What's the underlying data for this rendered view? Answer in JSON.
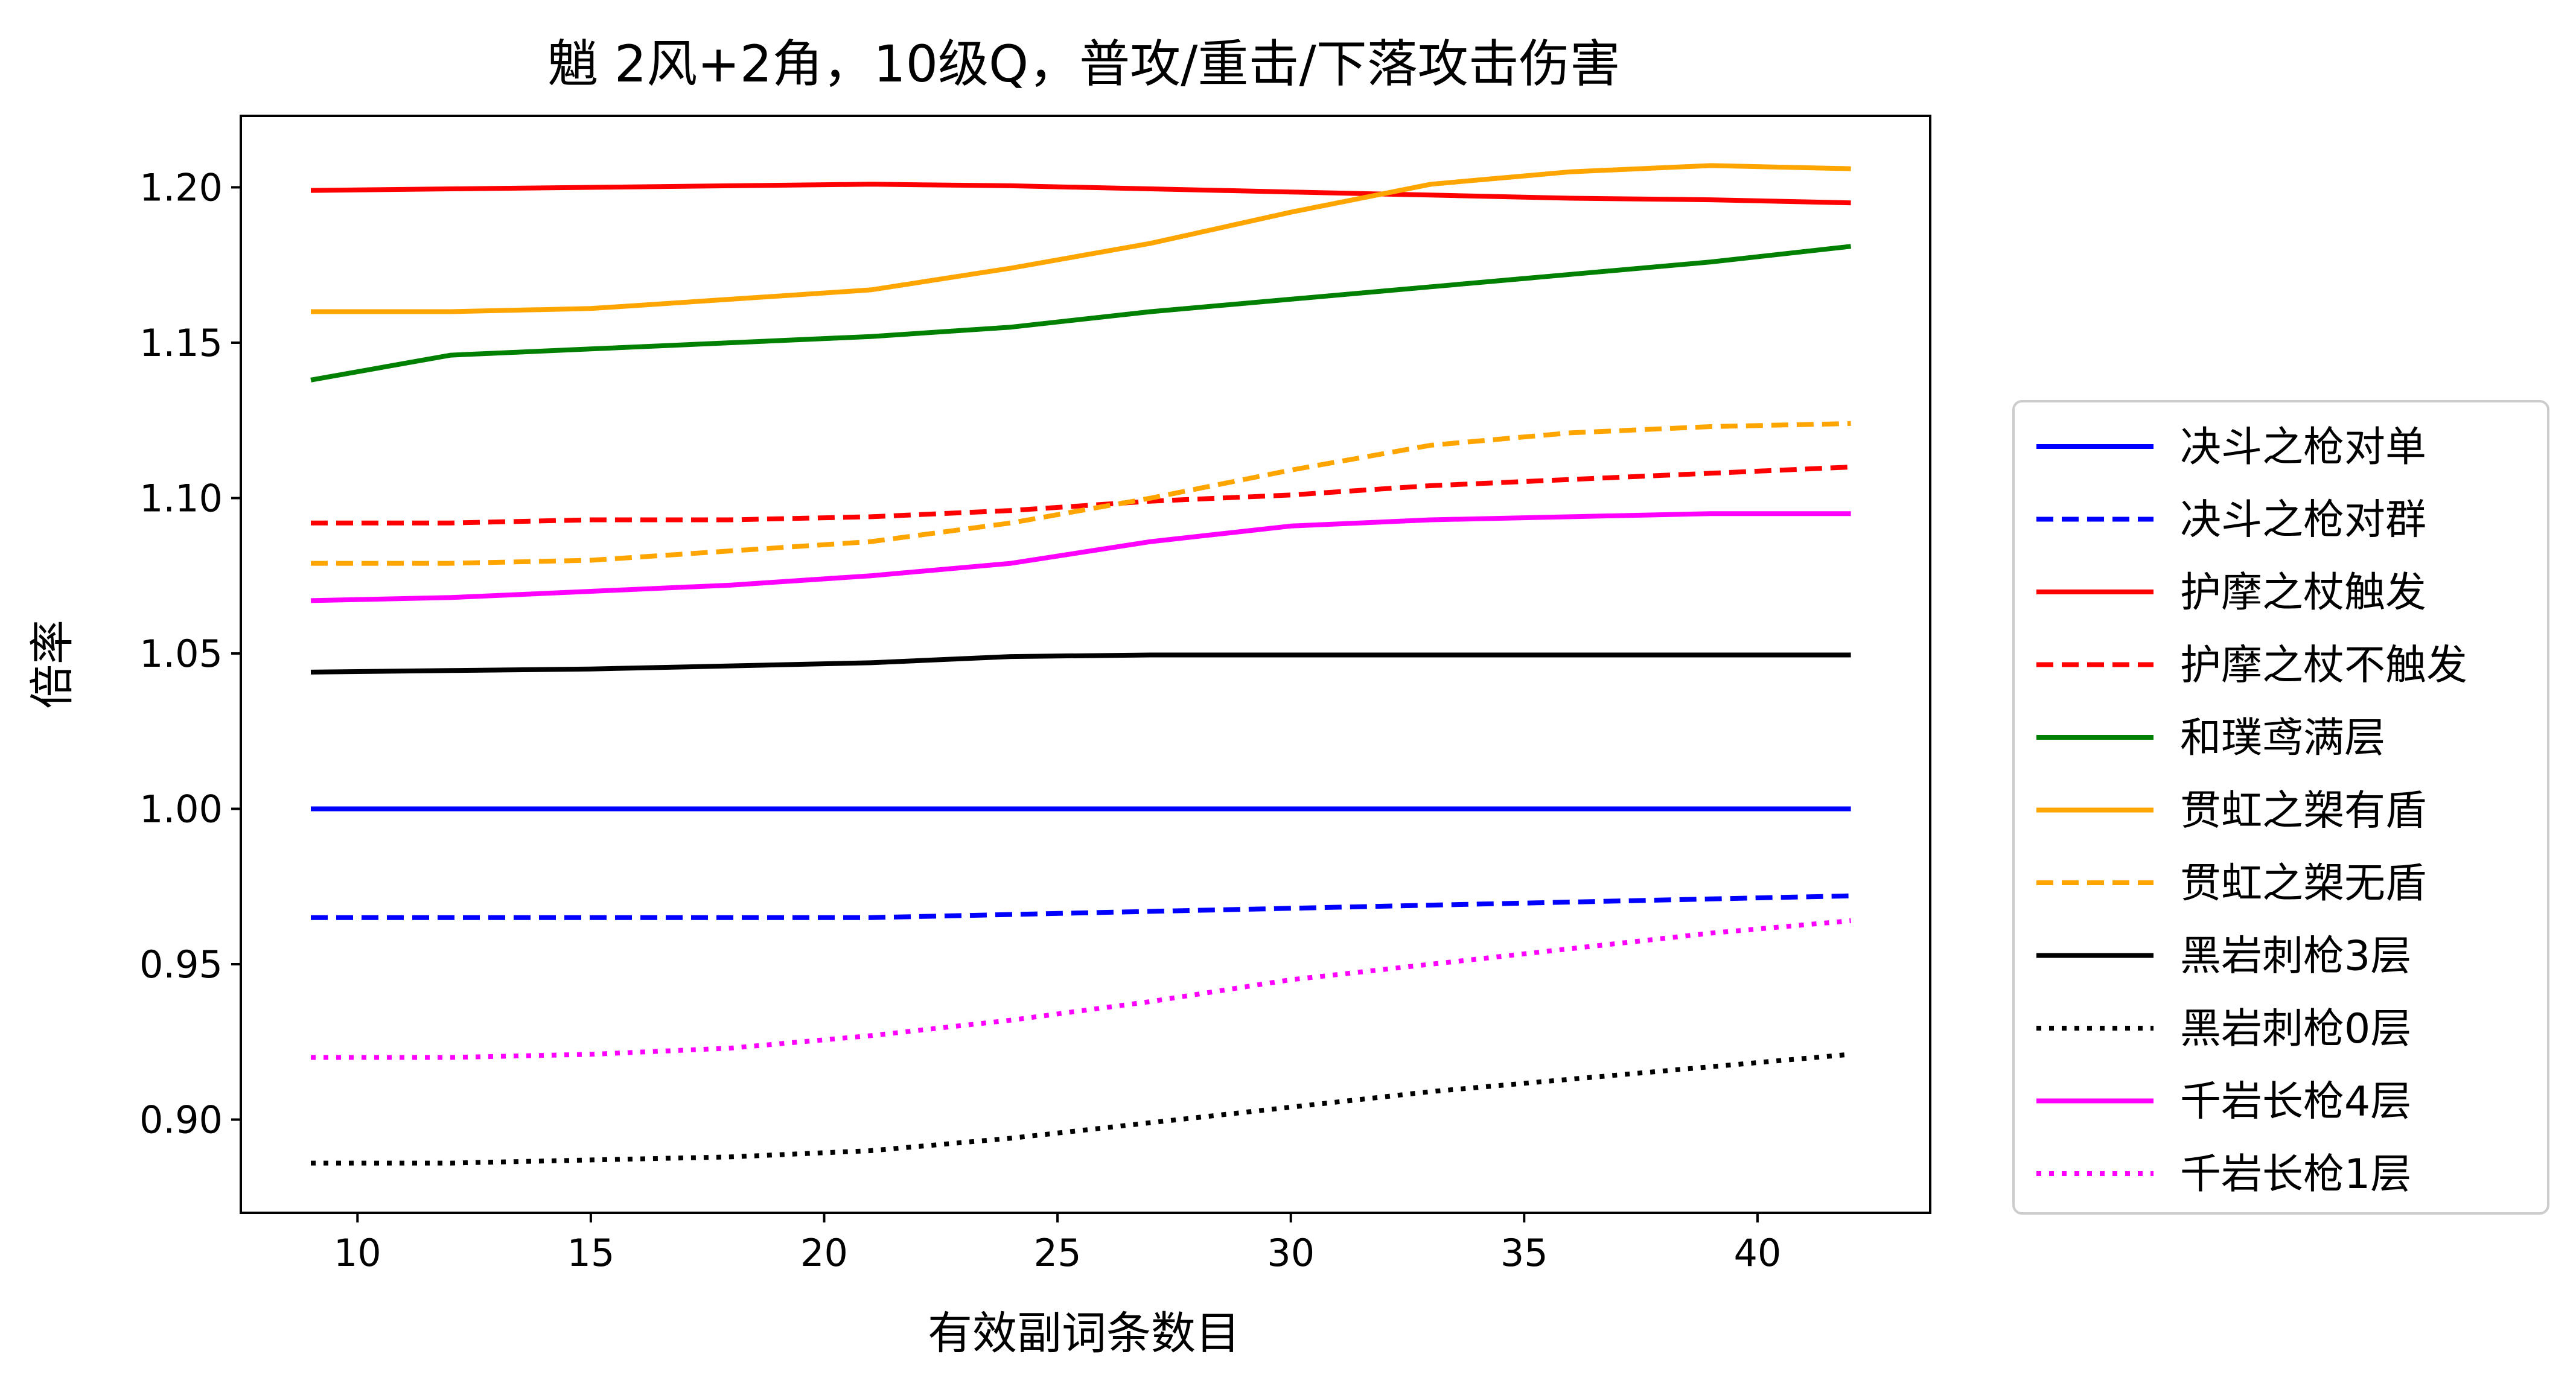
{
  "chart_data": {
    "type": "line",
    "title": "魈 2风+2角，10级Q，普攻/重击/下落攻击伤害",
    "xlabel": "有效副词条数目",
    "ylabel": "倍率",
    "xlim": [
      7.5,
      43.7
    ],
    "ylim": [
      0.87,
      1.223
    ],
    "x_ticks": [
      10,
      15,
      20,
      25,
      30,
      35,
      40
    ],
    "y_ticks": [
      0.9,
      0.95,
      1.0,
      1.05,
      1.1,
      1.15,
      1.2
    ],
    "x_tick_labels": [
      "10",
      "15",
      "20",
      "25",
      "30",
      "35",
      "40"
    ],
    "y_tick_labels": [
      "0.90",
      "0.95",
      "1.00",
      "1.05",
      "1.10",
      "1.15",
      "1.20"
    ],
    "grid": false,
    "legend_position": "outside-right",
    "x": [
      9,
      12,
      15,
      18,
      21,
      24,
      27,
      30,
      33,
      36,
      39,
      42
    ],
    "series": [
      {
        "name": "决斗之枪对单",
        "color": "#0000ff",
        "style": "solid",
        "values": [
          1.0,
          1.0,
          1.0,
          1.0,
          1.0,
          1.0,
          1.0,
          1.0,
          1.0,
          1.0,
          1.0,
          1.0
        ]
      },
      {
        "name": "决斗之枪对群",
        "color": "#0000ff",
        "style": "dashed",
        "values": [
          0.965,
          0.965,
          0.965,
          0.965,
          0.965,
          0.966,
          0.967,
          0.968,
          0.969,
          0.97,
          0.971,
          0.972
        ]
      },
      {
        "name": "护摩之杖触发",
        "color": "#ff0000",
        "style": "solid",
        "values": [
          1.199,
          1.1995,
          1.2,
          1.2005,
          1.201,
          1.2005,
          1.1995,
          1.1985,
          1.1975,
          1.1965,
          1.196,
          1.195
        ]
      },
      {
        "name": "护摩之杖不触发",
        "color": "#ff0000",
        "style": "dashed",
        "values": [
          1.092,
          1.092,
          1.093,
          1.093,
          1.094,
          1.096,
          1.099,
          1.101,
          1.104,
          1.106,
          1.108,
          1.11
        ]
      },
      {
        "name": "和璞鸢满层",
        "color": "#008000",
        "style": "solid",
        "values": [
          1.138,
          1.146,
          1.148,
          1.15,
          1.152,
          1.155,
          1.16,
          1.164,
          1.168,
          1.172,
          1.176,
          1.181
        ]
      },
      {
        "name": "贯虹之槊有盾",
        "color": "#ffa500",
        "style": "solid",
        "values": [
          1.16,
          1.16,
          1.161,
          1.164,
          1.167,
          1.174,
          1.182,
          1.192,
          1.201,
          1.205,
          1.207,
          1.206
        ]
      },
      {
        "name": "贯虹之槊无盾",
        "color": "#ffa500",
        "style": "dashed",
        "values": [
          1.079,
          1.079,
          1.08,
          1.083,
          1.086,
          1.092,
          1.1,
          1.109,
          1.117,
          1.121,
          1.123,
          1.124
        ]
      },
      {
        "name": "黑岩刺枪3层",
        "color": "#000000",
        "style": "solid",
        "values": [
          1.044,
          1.0445,
          1.045,
          1.046,
          1.047,
          1.049,
          1.0495,
          1.0495,
          1.0495,
          1.0495,
          1.0495,
          1.0495
        ]
      },
      {
        "name": "黑岩刺枪0层",
        "color": "#000000",
        "style": "dotted",
        "values": [
          0.886,
          0.886,
          0.887,
          0.888,
          0.89,
          0.894,
          0.899,
          0.904,
          0.909,
          0.913,
          0.917,
          0.921
        ]
      },
      {
        "name": "千岩长枪4层",
        "color": "#ff00ff",
        "style": "solid",
        "values": [
          1.067,
          1.068,
          1.07,
          1.072,
          1.075,
          1.079,
          1.086,
          1.091,
          1.093,
          1.094,
          1.095,
          1.095
        ]
      },
      {
        "name": "千岩长枪1层",
        "color": "#ff00ff",
        "style": "dotted",
        "values": [
          0.92,
          0.92,
          0.921,
          0.923,
          0.927,
          0.932,
          0.938,
          0.945,
          0.95,
          0.955,
          0.96,
          0.964
        ]
      }
    ]
  }
}
